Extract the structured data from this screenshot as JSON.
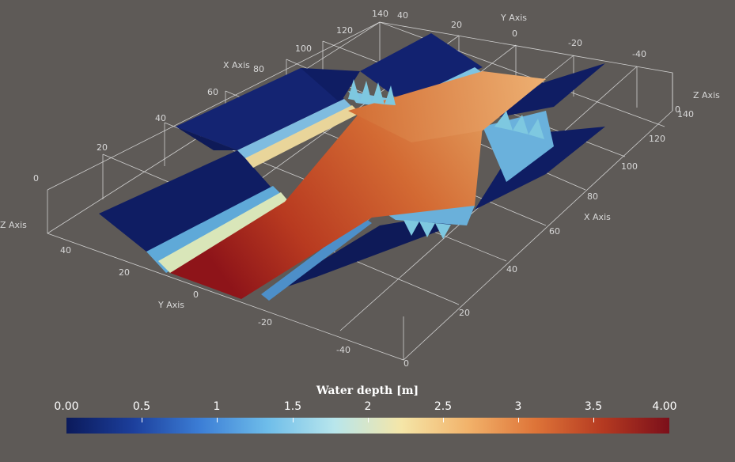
{
  "colorbar": {
    "title": "Water depth [m]",
    "min_label": "0.00",
    "max_label": "4.00",
    "ticks": [
      "0.5",
      "1",
      "1.5",
      "2",
      "2.5",
      "3",
      "3.5"
    ],
    "stops": [
      "#0b1a5b",
      "#1c3f9c",
      "#3c7ed6",
      "#6ebdea",
      "#b8e6ec",
      "#f5e6a8",
      "#f2b26a",
      "#de7438",
      "#b53a21",
      "#7b0f1a"
    ]
  },
  "axes": {
    "x_title": "X Axis",
    "y_title": "Y Axis",
    "z_title": "Z Axis",
    "x_ticks_top": [
      "140",
      "120",
      "100",
      "80",
      "60",
      "40",
      "20",
      "0"
    ],
    "x_ticks_right": [
      "0",
      "20",
      "40",
      "60",
      "80",
      "100",
      "120",
      "140"
    ],
    "y_ticks_top": [
      "40",
      "20",
      "0",
      "-20",
      "-40"
    ],
    "y_ticks_front": [
      "40",
      "20",
      "0",
      "-20",
      "-40"
    ],
    "z_ticks": [
      "0",
      "0"
    ]
  },
  "colors": {
    "background": "#5e5a57",
    "bank": "#0f1d63",
    "channel_up": "#d0703c",
    "channel_down": "#9c1f1c"
  }
}
